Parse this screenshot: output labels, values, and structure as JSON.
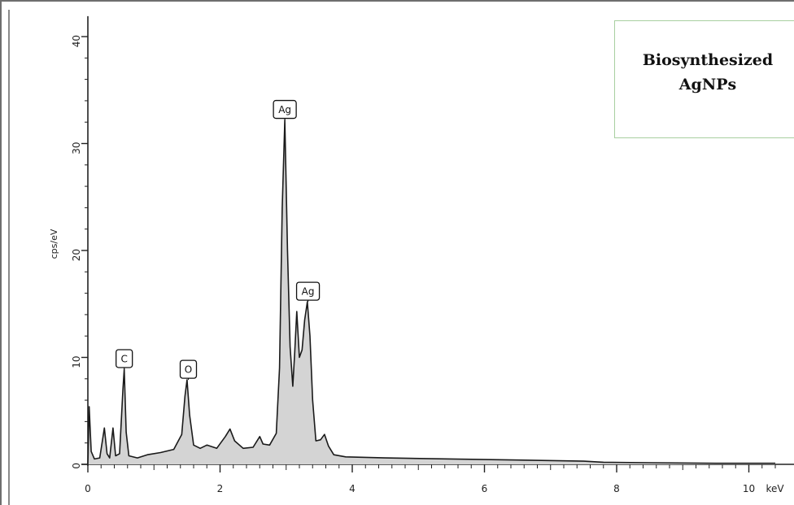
{
  "chart_data": {
    "type": "area",
    "ylabel": "cps/eV",
    "xunit": "keV",
    "xlim": [
      0,
      10.4
    ],
    "ylim": [
      0,
      41
    ],
    "xticks": [
      0,
      2,
      4,
      6,
      8,
      10
    ],
    "yticks": [
      0,
      10,
      20,
      30,
      40
    ],
    "legend_lines": [
      "Biosynthesized",
      "AgNPs"
    ],
    "legend_position": "top-right",
    "fill_color": "#d4d4d4",
    "line_color": "#1a1a1a",
    "peak_labels": [
      {
        "label": "C",
        "x": 0.55,
        "y": 8.9
      },
      {
        "label": "O",
        "x": 1.52,
        "y": 7.9
      },
      {
        "label": "Ag",
        "x": 2.98,
        "y": 32.2
      },
      {
        "label": "Ag",
        "x": 3.33,
        "y": 15.2
      }
    ],
    "spectrum": [
      [
        0.0,
        0.0
      ],
      [
        0.02,
        5.4
      ],
      [
        0.05,
        1.2
      ],
      [
        0.1,
        0.5
      ],
      [
        0.18,
        0.6
      ],
      [
        0.25,
        3.4
      ],
      [
        0.29,
        1.0
      ],
      [
        0.33,
        0.6
      ],
      [
        0.38,
        3.4
      ],
      [
        0.42,
        0.8
      ],
      [
        0.48,
        1.0
      ],
      [
        0.53,
        7.0
      ],
      [
        0.55,
        8.9
      ],
      [
        0.58,
        3.0
      ],
      [
        0.62,
        0.8
      ],
      [
        0.75,
        0.6
      ],
      [
        0.9,
        0.9
      ],
      [
        1.1,
        1.1
      ],
      [
        1.3,
        1.4
      ],
      [
        1.42,
        2.8
      ],
      [
        1.47,
        6.4
      ],
      [
        1.5,
        7.9
      ],
      [
        1.54,
        4.6
      ],
      [
        1.6,
        1.8
      ],
      [
        1.7,
        1.5
      ],
      [
        1.8,
        1.8
      ],
      [
        1.95,
        1.5
      ],
      [
        2.08,
        2.6
      ],
      [
        2.15,
        3.3
      ],
      [
        2.22,
        2.2
      ],
      [
        2.35,
        1.5
      ],
      [
        2.5,
        1.6
      ],
      [
        2.6,
        2.6
      ],
      [
        2.65,
        1.9
      ],
      [
        2.75,
        1.8
      ],
      [
        2.85,
        2.9
      ],
      [
        2.9,
        9.0
      ],
      [
        2.94,
        24.0
      ],
      [
        2.98,
        32.2
      ],
      [
        3.02,
        20.0
      ],
      [
        3.06,
        11.0
      ],
      [
        3.1,
        7.3
      ],
      [
        3.13,
        10.5
      ],
      [
        3.16,
        14.3
      ],
      [
        3.2,
        10.0
      ],
      [
        3.24,
        10.7
      ],
      [
        3.28,
        13.5
      ],
      [
        3.32,
        15.2
      ],
      [
        3.36,
        12.0
      ],
      [
        3.4,
        6.0
      ],
      [
        3.45,
        2.2
      ],
      [
        3.52,
        2.3
      ],
      [
        3.58,
        2.8
      ],
      [
        3.64,
        1.7
      ],
      [
        3.72,
        0.9
      ],
      [
        3.9,
        0.7
      ],
      [
        4.5,
        0.6
      ],
      [
        5.5,
        0.5
      ],
      [
        6.5,
        0.4
      ],
      [
        7.5,
        0.3
      ],
      [
        7.8,
        0.2
      ],
      [
        8.5,
        0.15
      ],
      [
        9.5,
        0.1
      ],
      [
        10.4,
        0.1
      ]
    ]
  }
}
